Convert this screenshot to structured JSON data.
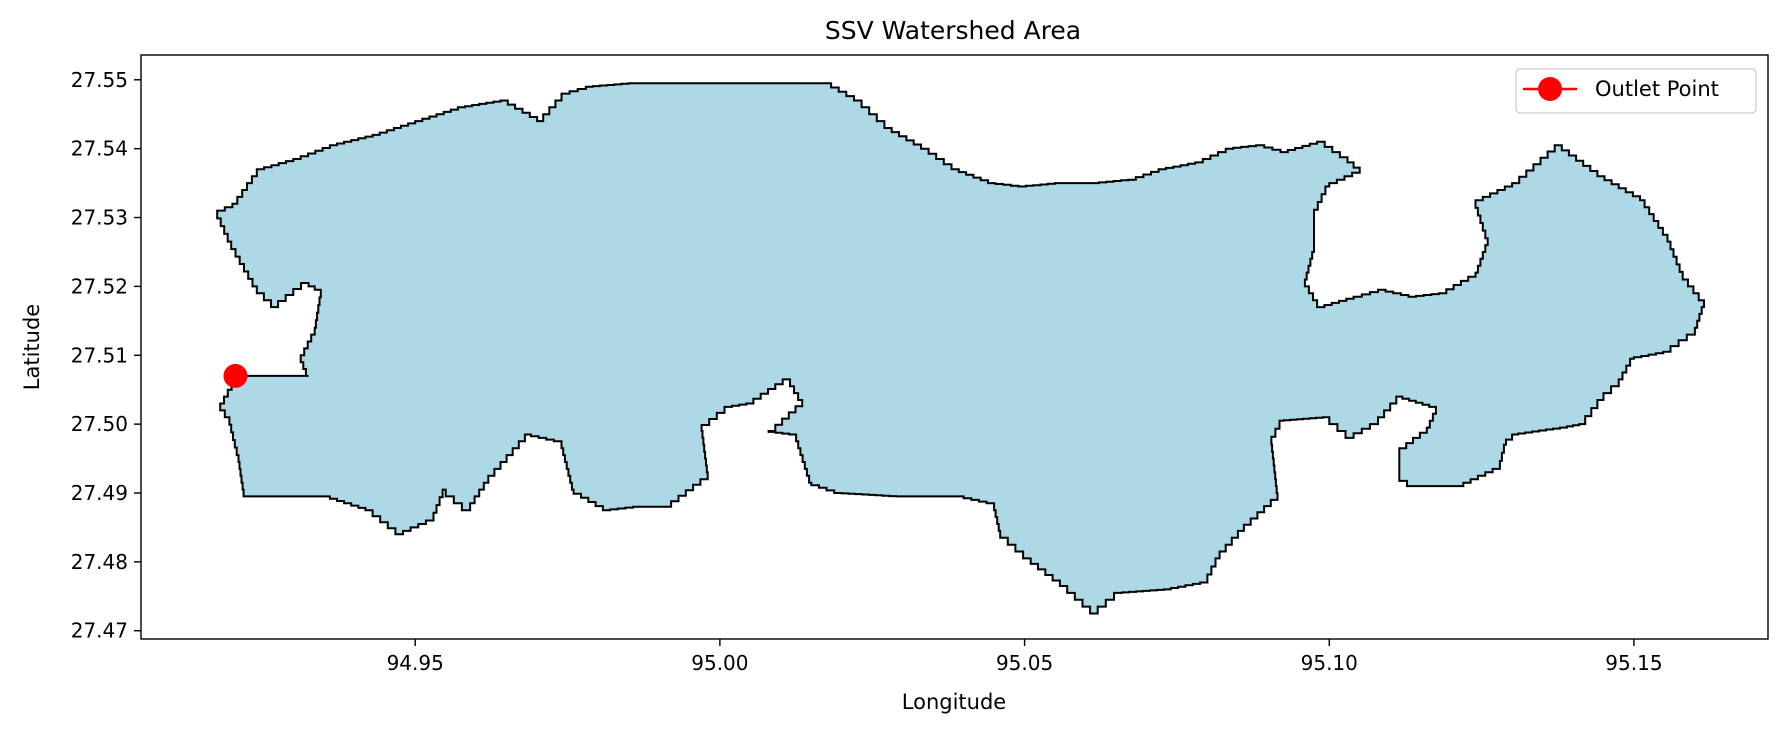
{
  "chart_data": {
    "type": "scatter",
    "title": "SSV Watershed Area",
    "xlabel": "Longitude",
    "ylabel": "Latitude",
    "xlim": [
      94.905,
      95.172
    ],
    "ylim": [
      27.4688,
      27.5536
    ],
    "xticks": [
      94.95,
      95.0,
      95.05,
      95.1,
      95.15
    ],
    "xtick_labels": [
      "94.95",
      "95.00",
      "95.05",
      "95.10",
      "95.15"
    ],
    "yticks": [
      27.47,
      27.48,
      27.49,
      27.5,
      27.51,
      27.52,
      27.53,
      27.54,
      27.55
    ],
    "ytick_labels": [
      "27.47",
      "27.48",
      "27.49",
      "27.50",
      "27.51",
      "27.52",
      "27.53",
      "27.54",
      "27.55"
    ],
    "grid": false,
    "legend": {
      "position": "top-right",
      "entries": [
        "Outlet Point"
      ]
    },
    "outlet_point": {
      "name": "Outlet Point",
      "lon": 94.9205,
      "lat": 27.507,
      "color": "#ff0000"
    },
    "watershed": {
      "fill": "#add8e6",
      "edge": "#000000",
      "boundary": [
        [
          94.9205,
          27.507
        ],
        [
          94.9325,
          27.507
        ],
        [
          94.9312,
          27.51
        ],
        [
          94.9335,
          27.514
        ],
        [
          94.9345,
          27.5195
        ],
        [
          94.9325,
          27.5205
        ],
        [
          94.9275,
          27.517
        ],
        [
          94.924,
          27.52
        ],
        [
          94.9198,
          27.5265
        ],
        [
          94.9175,
          27.531
        ],
        [
          94.92,
          27.532
        ],
        [
          94.924,
          27.537
        ],
        [
          94.93,
          27.5385
        ],
        [
          94.936,
          27.5405
        ],
        [
          94.943,
          27.542
        ],
        [
          94.95,
          27.544
        ],
        [
          94.957,
          27.546
        ],
        [
          94.964,
          27.547
        ],
        [
          94.97,
          27.544
        ],
        [
          94.974,
          27.548
        ],
        [
          94.978,
          27.549
        ],
        [
          94.985,
          27.5495
        ],
        [
          95.0,
          27.5495
        ],
        [
          95.017,
          27.5495
        ],
        [
          95.022,
          27.547
        ],
        [
          95.027,
          27.543
        ],
        [
          95.033,
          27.54
        ],
        [
          95.038,
          27.537
        ],
        [
          95.044,
          27.535
        ],
        [
          95.049,
          27.5345
        ],
        [
          95.055,
          27.535
        ],
        [
          95.061,
          27.535
        ],
        [
          95.067,
          27.5355
        ],
        [
          95.072,
          27.537
        ],
        [
          95.078,
          27.538
        ],
        [
          95.083,
          27.54
        ],
        [
          95.088,
          27.5405
        ],
        [
          95.092,
          27.5395
        ],
        [
          95.098,
          27.541
        ],
        [
          95.103,
          27.538
        ],
        [
          95.105,
          27.5365
        ],
        [
          95.1,
          27.5345
        ],
        [
          95.0975,
          27.53
        ],
        [
          95.0975,
          27.525
        ],
        [
          95.096,
          27.52
        ],
        [
          95.098,
          27.517
        ],
        [
          95.104,
          27.5185
        ],
        [
          95.108,
          27.5195
        ],
        [
          95.113,
          27.5185
        ],
        [
          95.118,
          27.519
        ],
        [
          95.124,
          27.522
        ],
        [
          95.126,
          27.527
        ],
        [
          95.124,
          27.5325
        ],
        [
          95.13,
          27.535
        ],
        [
          95.137,
          27.5405
        ],
        [
          95.144,
          27.536
        ],
        [
          95.151,
          27.5325
        ],
        [
          95.1555,
          27.5265
        ],
        [
          95.158,
          27.521
        ],
        [
          95.1615,
          27.517
        ],
        [
          95.16,
          27.513
        ],
        [
          95.156,
          27.5105
        ],
        [
          95.15,
          27.5095
        ],
        [
          95.1475,
          27.5055
        ],
        [
          95.145,
          27.5035
        ],
        [
          95.142,
          27.5
        ],
        [
          95.139,
          27.4995
        ],
        [
          95.131,
          27.4985
        ],
        [
          95.129,
          27.497
        ],
        [
          95.128,
          27.4935
        ],
        [
          95.122,
          27.491
        ],
        [
          95.114,
          27.491
        ],
        [
          95.1115,
          27.4925
        ],
        [
          95.1115,
          27.4965
        ],
        [
          95.116,
          27.4995
        ],
        [
          95.1175,
          27.5025
        ],
        [
          95.112,
          27.504
        ],
        [
          95.108,
          27.5
        ],
        [
          95.104,
          27.498
        ],
        [
          95.1,
          27.501
        ],
        [
          95.0925,
          27.5005
        ],
        [
          95.0905,
          27.497
        ],
        [
          95.0915,
          27.489
        ],
        [
          95.086,
          27.4845
        ],
        [
          95.082,
          27.4805
        ],
        [
          95.08,
          27.477
        ],
        [
          95.074,
          27.476
        ],
        [
          95.066,
          27.4755
        ],
        [
          95.062,
          27.4725
        ],
        [
          95.057,
          27.4765
        ],
        [
          95.051,
          27.4805
        ],
        [
          95.046,
          27.4845
        ],
        [
          95.045,
          27.4885
        ],
        [
          95.04,
          27.4895
        ],
        [
          95.03,
          27.4895
        ],
        [
          95.02,
          27.49
        ],
        [
          95.015,
          27.4915
        ],
        [
          95.0125,
          27.4985
        ],
        [
          95.008,
          27.499
        ],
        [
          95.0135,
          27.5035
        ],
        [
          95.0115,
          27.5065
        ],
        [
          95.0055,
          27.503
        ],
        [
          95.002,
          27.5025
        ],
        [
          94.997,
          27.499
        ],
        [
          94.998,
          27.492
        ],
        [
          94.992,
          27.488
        ],
        [
          94.987,
          27.488
        ],
        [
          94.982,
          27.4875
        ],
        [
          94.976,
          27.4905
        ],
        [
          94.974,
          27.4975
        ],
        [
          94.969,
          27.4985
        ],
        [
          94.962,
          27.4915
        ],
        [
          94.959,
          27.4875
        ],
        [
          94.955,
          27.4905
        ],
        [
          94.953,
          27.486
        ],
        [
          94.948,
          27.484
        ],
        [
          94.943,
          27.4875
        ],
        [
          94.936,
          27.4895
        ],
        [
          94.929,
          27.4895
        ],
        [
          94.922,
          27.4895
        ],
        [
          94.921,
          27.4955
        ],
        [
          94.9195,
          27.501
        ],
        [
          94.918,
          27.503
        ],
        [
          94.9205,
          27.507
        ]
      ]
    }
  }
}
